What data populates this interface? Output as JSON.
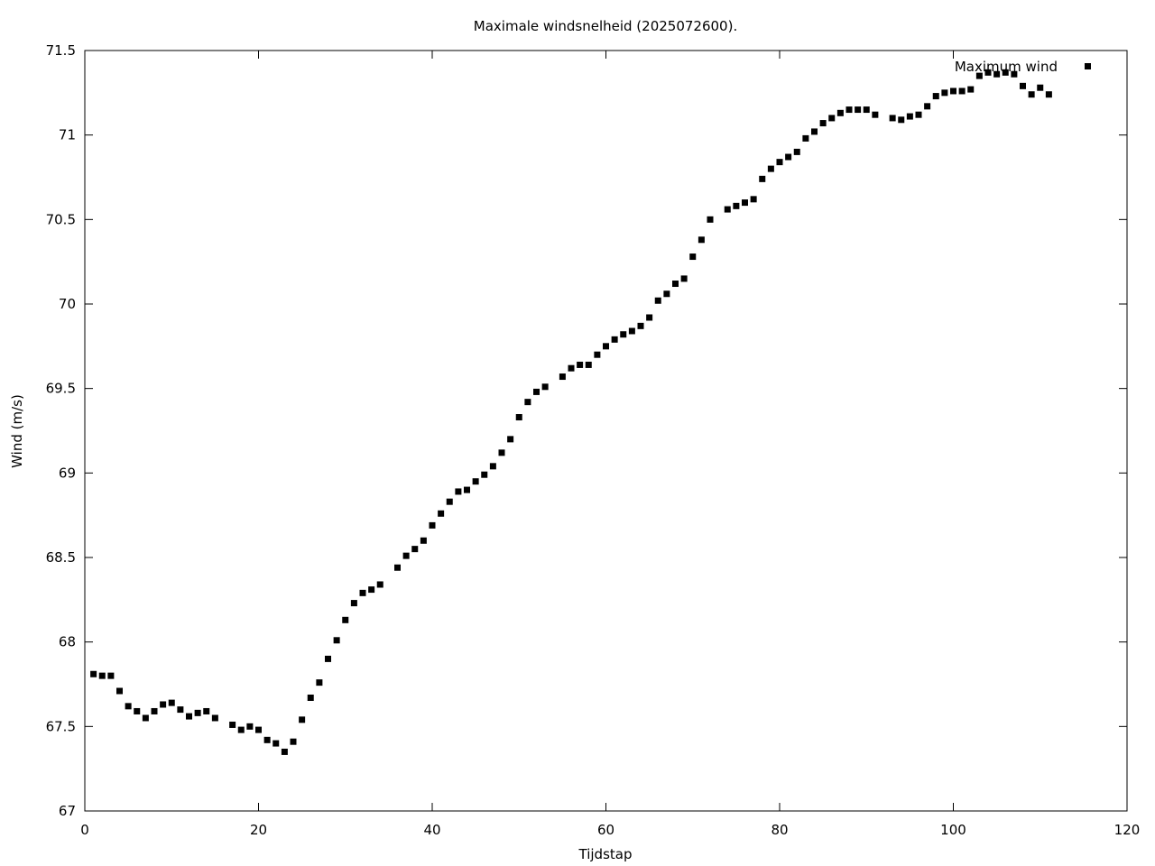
{
  "chart_data": {
    "type": "scatter",
    "title": "Maximale windsnelheid (2025072600).",
    "xlabel": "Tijdstap",
    "ylabel": "Wind (m/s)",
    "xlim": [
      0,
      120
    ],
    "ylim": [
      67,
      71.5
    ],
    "x_ticks": [
      0,
      20,
      40,
      60,
      80,
      100,
      120
    ],
    "x_tick_labels": [
      "0",
      "20",
      "40",
      "60",
      "80",
      "100",
      "120"
    ],
    "y_ticks": [
      67,
      67.5,
      68,
      68.5,
      69,
      69.5,
      70,
      70.5,
      71,
      71.5
    ],
    "y_tick_labels": [
      "67",
      "67.5",
      "68",
      "68.5",
      "69",
      "69.5",
      "70",
      "70.5",
      "71",
      "71.5"
    ],
    "grid": false,
    "legend_position": "top-right",
    "marker": "filled-square",
    "marker_color": "#000000",
    "series": [
      {
        "name": "Maximum wind",
        "points": [
          [
            1,
            67.81
          ],
          [
            2,
            67.8
          ],
          [
            3,
            67.8
          ],
          [
            4,
            67.71
          ],
          [
            5,
            67.62
          ],
          [
            6,
            67.59
          ],
          [
            7,
            67.55
          ],
          [
            8,
            67.59
          ],
          [
            9,
            67.63
          ],
          [
            10,
            67.64
          ],
          [
            11,
            67.6
          ],
          [
            12,
            67.56
          ],
          [
            13,
            67.58
          ],
          [
            14,
            67.59
          ],
          [
            15,
            67.55
          ],
          [
            17,
            67.51
          ],
          [
            18,
            67.48
          ],
          [
            19,
            67.5
          ],
          [
            20,
            67.48
          ],
          [
            21,
            67.42
          ],
          [
            22,
            67.4
          ],
          [
            23,
            67.35
          ],
          [
            24,
            67.41
          ],
          [
            25,
            67.54
          ],
          [
            26,
            67.67
          ],
          [
            27,
            67.76
          ],
          [
            28,
            67.9
          ],
          [
            29,
            68.01
          ],
          [
            30,
            68.13
          ],
          [
            31,
            68.23
          ],
          [
            32,
            68.29
          ],
          [
            33,
            68.31
          ],
          [
            34,
            68.34
          ],
          [
            36,
            68.44
          ],
          [
            37,
            68.51
          ],
          [
            38,
            68.55
          ],
          [
            39,
            68.6
          ],
          [
            40,
            68.69
          ],
          [
            41,
            68.76
          ],
          [
            42,
            68.83
          ],
          [
            43,
            68.89
          ],
          [
            44,
            68.9
          ],
          [
            45,
            68.95
          ],
          [
            46,
            68.99
          ],
          [
            47,
            69.04
          ],
          [
            48,
            69.12
          ],
          [
            49,
            69.2
          ],
          [
            50,
            69.33
          ],
          [
            51,
            69.42
          ],
          [
            52,
            69.48
          ],
          [
            53,
            69.51
          ],
          [
            55,
            69.57
          ],
          [
            56,
            69.62
          ],
          [
            57,
            69.64
          ],
          [
            58,
            69.64
          ],
          [
            59,
            69.7
          ],
          [
            60,
            69.75
          ],
          [
            61,
            69.79
          ],
          [
            62,
            69.82
          ],
          [
            63,
            69.84
          ],
          [
            64,
            69.87
          ],
          [
            65,
            69.92
          ],
          [
            66,
            70.02
          ],
          [
            67,
            70.06
          ],
          [
            68,
            70.12
          ],
          [
            69,
            70.15
          ],
          [
            70,
            70.28
          ],
          [
            71,
            70.38
          ],
          [
            72,
            70.5
          ],
          [
            74,
            70.56
          ],
          [
            75,
            70.58
          ],
          [
            76,
            70.6
          ],
          [
            77,
            70.62
          ],
          [
            78,
            70.74
          ],
          [
            79,
            70.8
          ],
          [
            80,
            70.84
          ],
          [
            81,
            70.87
          ],
          [
            82,
            70.9
          ],
          [
            83,
            70.98
          ],
          [
            84,
            71.02
          ],
          [
            85,
            71.07
          ],
          [
            86,
            71.1
          ],
          [
            87,
            71.13
          ],
          [
            88,
            71.15
          ],
          [
            89,
            71.15
          ],
          [
            90,
            71.15
          ],
          [
            91,
            71.12
          ],
          [
            93,
            71.1
          ],
          [
            94,
            71.09
          ],
          [
            95,
            71.11
          ],
          [
            96,
            71.12
          ],
          [
            97,
            71.17
          ],
          [
            98,
            71.23
          ],
          [
            99,
            71.25
          ],
          [
            100,
            71.26
          ],
          [
            101,
            71.26
          ],
          [
            102,
            71.27
          ],
          [
            103,
            71.35
          ],
          [
            104,
            71.37
          ],
          [
            105,
            71.36
          ],
          [
            106,
            71.37
          ],
          [
            107,
            71.36
          ],
          [
            108,
            71.29
          ],
          [
            109,
            71.24
          ],
          [
            110,
            71.28
          ],
          [
            111,
            71.24
          ]
        ]
      }
    ]
  }
}
